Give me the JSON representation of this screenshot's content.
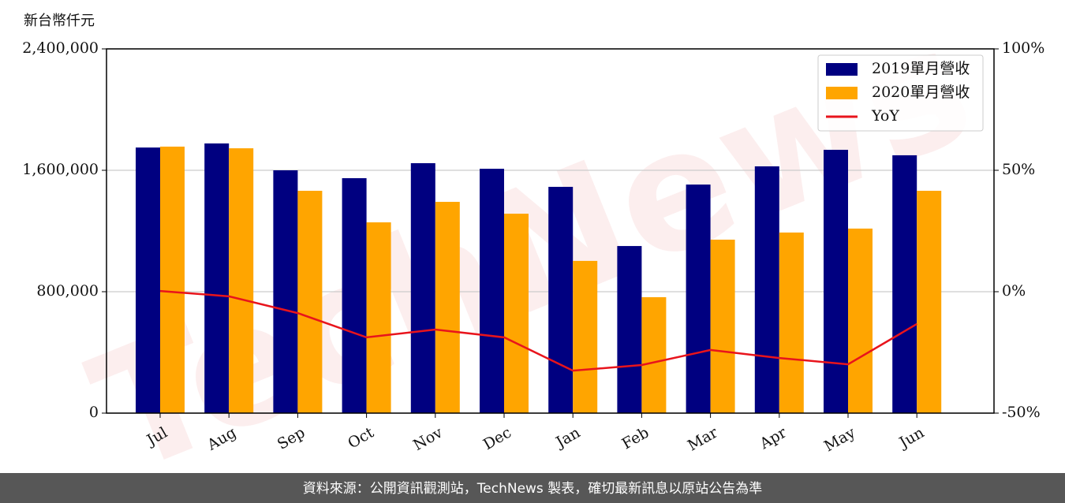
{
  "chart_data": {
    "type": "bar_line",
    "ylabel": "新台幣仟元",
    "watermark": "TechNews",
    "footer": "資料來源：公開資訊觀測站，TechNews 製表，確切最新訊息以原站公告為準",
    "categories": [
      "Jul",
      "Aug",
      "Sep",
      "Oct",
      "Nov",
      "Dec",
      "Jan",
      "Feb",
      "Mar",
      "Apr",
      "May",
      "Jun"
    ],
    "series": [
      {
        "name": "2019單月營收",
        "color": "#000080",
        "type": "bar",
        "values": [
          1750000,
          1777000,
          1600000,
          1548000,
          1647000,
          1610000,
          1491000,
          1101000,
          1506000,
          1626000,
          1735000,
          1699000
        ]
      },
      {
        "name": "2020單月營收",
        "color": "#ffa500",
        "type": "bar",
        "values": [
          1756000,
          1745000,
          1465000,
          1257000,
          1392000,
          1314000,
          1003000,
          764000,
          1143000,
          1190000,
          1216000,
          1465000
        ]
      },
      {
        "name": "YoY",
        "color": "#e8141c",
        "type": "line",
        "axis": "y2",
        "values": [
          0.3,
          -1.9,
          -8.8,
          -18.8,
          -15.6,
          -18.8,
          -32.5,
          -30.2,
          -24.0,
          -27.3,
          -29.9,
          -13.3
        ]
      }
    ],
    "ylim": [
      0,
      2400000
    ],
    "yticks": [
      {
        "value": 0,
        "label": "0"
      },
      {
        "value": 800000,
        "label": "800,000"
      },
      {
        "value": 1600000,
        "label": "1,600,000"
      },
      {
        "value": 2400000,
        "label": "2,400,000"
      }
    ],
    "y2lim": [
      -50,
      100
    ],
    "y2ticks": [
      {
        "value": -50,
        "label": "-50%"
      },
      {
        "value": 0,
        "label": "0%"
      },
      {
        "value": 50,
        "label": "50%"
      },
      {
        "value": 100,
        "label": "100%"
      }
    ],
    "grid": true,
    "legend": "upper right"
  }
}
